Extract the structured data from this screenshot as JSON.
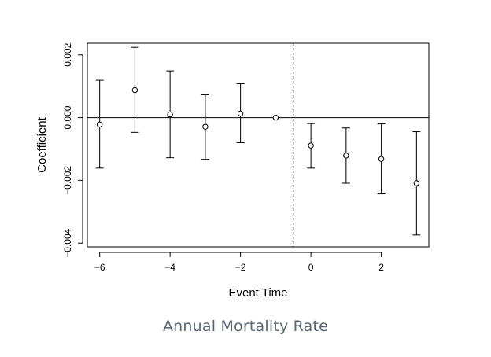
{
  "chart_data": {
    "type": "scatter",
    "style": "point-estimate-with-error-bars",
    "title": "",
    "xlabel": "Event Time",
    "ylabel": "Coefficient",
    "xlim": [
      -6.35,
      3.35
    ],
    "ylim": [
      -0.00412,
      0.00237
    ],
    "x_ticks": [
      -6,
      -4,
      -2,
      0,
      2
    ],
    "x_tick_labels": [
      "−6",
      "−4",
      "−2",
      "0",
      "2"
    ],
    "y_ticks": [
      -0.004,
      -0.002,
      0.0,
      0.002
    ],
    "y_tick_labels": [
      "−0.004",
      "−0.002",
      "0.000",
      "0.002"
    ],
    "reference_hline": 0.0,
    "reference_vline": -0.5,
    "points": [
      {
        "x": -6,
        "y": -0.00022,
        "lower": -0.00161,
        "upper": 0.00119
      },
      {
        "x": -5,
        "y": 0.00088,
        "lower": -0.00047,
        "upper": 0.00224
      },
      {
        "x": -4,
        "y": 0.0001,
        "lower": -0.00128,
        "upper": 0.00149
      },
      {
        "x": -3,
        "y": -0.00029,
        "lower": -0.00133,
        "upper": 0.00073
      },
      {
        "x": -2,
        "y": 0.00013,
        "lower": -0.0008,
        "upper": 0.00108
      },
      {
        "x": -1,
        "y": 0.0,
        "lower": 0.0,
        "upper": 0.0
      },
      {
        "x": 0,
        "y": -0.00089,
        "lower": -0.00161,
        "upper": -0.00019
      },
      {
        "x": 1,
        "y": -0.00121,
        "lower": -0.00209,
        "upper": -0.00033
      },
      {
        "x": 2,
        "y": -0.00132,
        "lower": -0.00243,
        "upper": -0.0002
      },
      {
        "x": 3,
        "y": -0.00209,
        "lower": -0.00374,
        "upper": -0.00045
      }
    ]
  },
  "caption": "Annual Mortality Rate"
}
